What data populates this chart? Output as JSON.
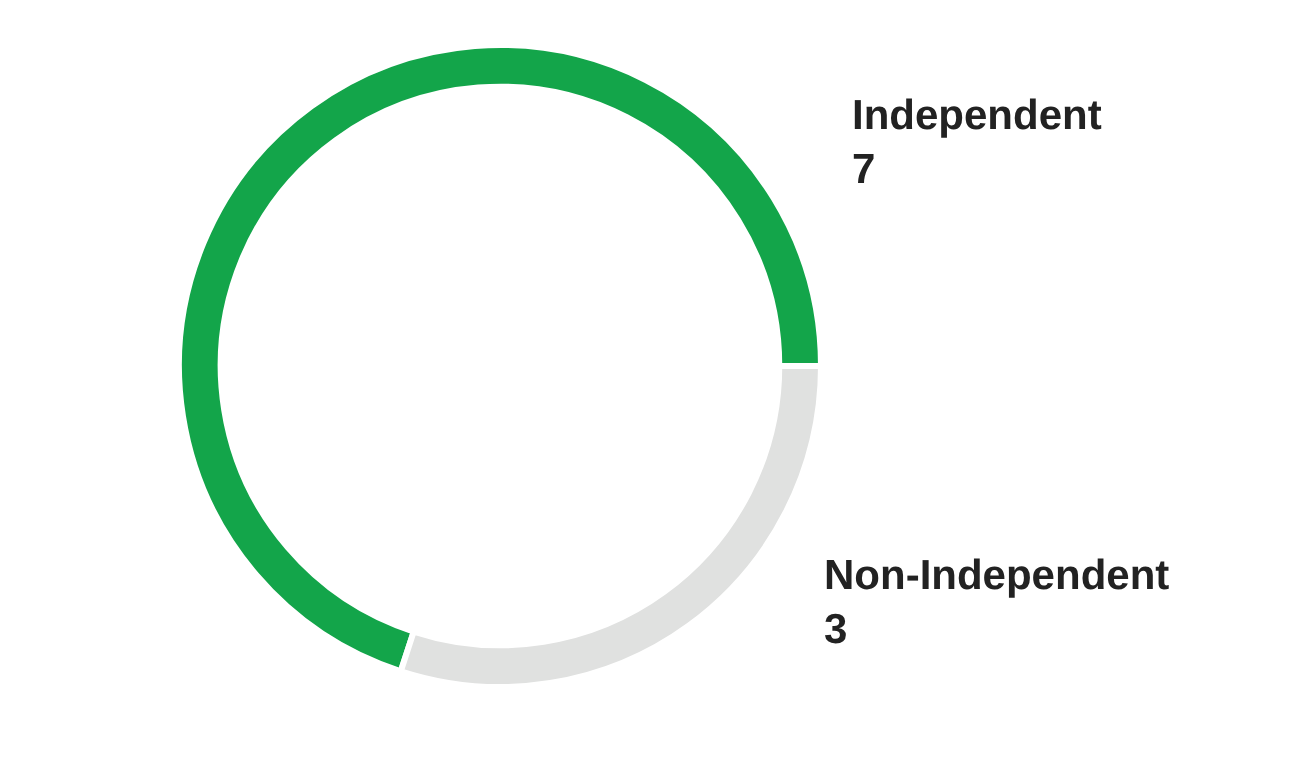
{
  "chart_data": {
    "type": "donut",
    "categories": [
      "Independent",
      "Non-Independent"
    ],
    "values": [
      7,
      3
    ],
    "colors": [
      "#13a54a",
      "#e0e1e0"
    ],
    "data_labels": true,
    "legend": false
  }
}
